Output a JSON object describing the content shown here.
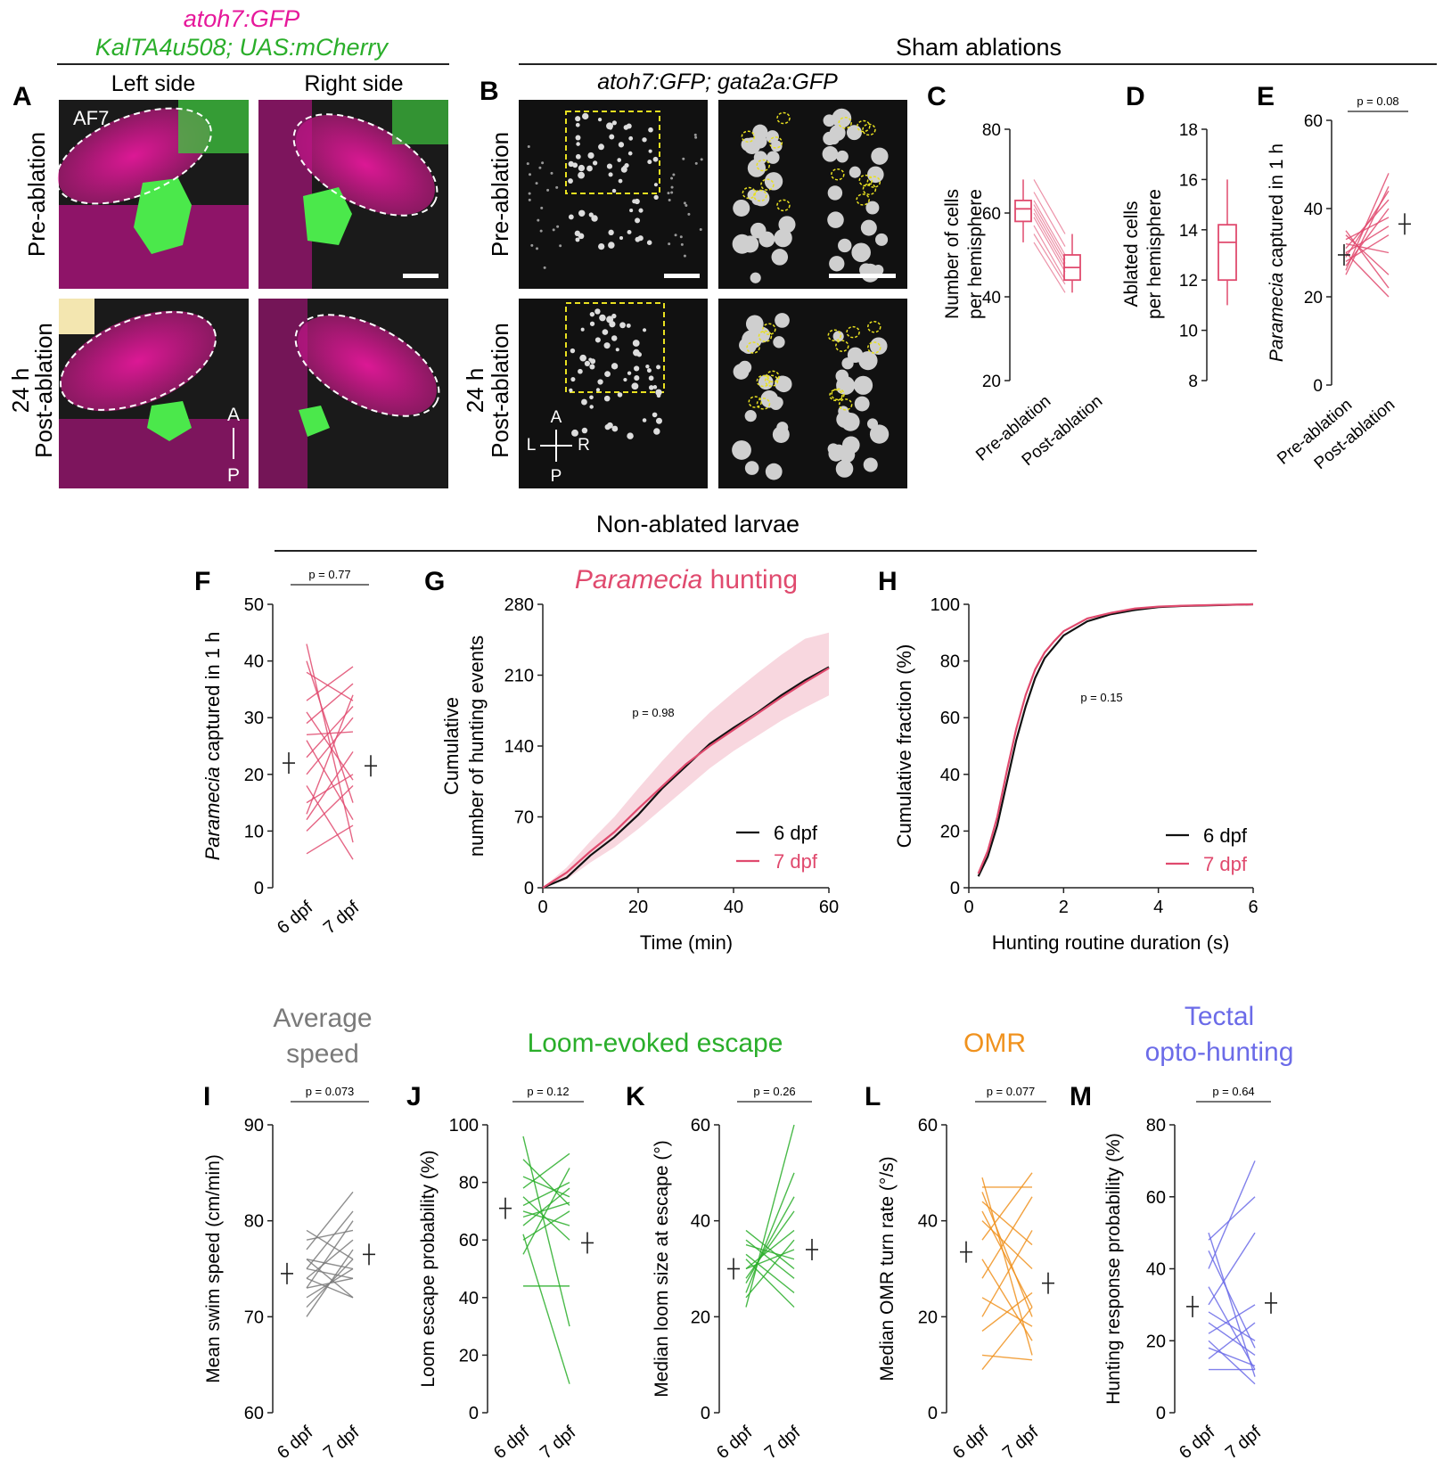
{
  "header_a": {
    "line1": "atoh7:GFP",
    "line2": "KalTA4u508; UAS:mCherry"
  },
  "header_sham": "Sham ablations",
  "header_b": "atoh7:GFP; gata2a:GFP",
  "header_nonablated": "Non-ablated larvae",
  "panel_letters": [
    "A",
    "B",
    "C",
    "D",
    "E",
    "F",
    "G",
    "H",
    "I",
    "J",
    "K",
    "L",
    "M"
  ],
  "panel_a": {
    "left_side": "Left side",
    "right_side": "Right side",
    "pre": "Pre-ablation",
    "post_line1": "24 h",
    "post_line2": "Post-ablation",
    "af7": "AF7",
    "axis_a": "A",
    "axis_p": "P"
  },
  "panel_b": {
    "pre": "Pre-ablation",
    "post_line1": "24 h",
    "post_line2": "Post-ablation",
    "axis_a": "A",
    "axis_p": "P",
    "axis_l": "L",
    "axis_r": "R"
  },
  "colors": {
    "magenta": "#E6189B",
    "green": "#2AAE2A",
    "pink": "#E04A6E",
    "gray": "#7a7a7a",
    "orange": "#F0921E",
    "blue": "#6B6BE8",
    "yellow": "#E8E020"
  },
  "section_titles": {
    "I": "Average speed",
    "J": "Loom-evoked escape",
    "L": "OMR",
    "M": "Tectal opto-hunting"
  },
  "chart_data": [
    {
      "panel": "C",
      "type": "box+paired",
      "ylabel": "Number of cells per hemisphere",
      "ylim": [
        20,
        80
      ],
      "yticks": [
        20,
        40,
        60,
        80
      ],
      "categories": [
        "Pre-ablation",
        "Post-ablation"
      ],
      "box": [
        {
          "q1": 58,
          "median": 61,
          "q3": 63,
          "min": 53,
          "max": 68
        },
        {
          "q1": 44,
          "median": 47,
          "q3": 50,
          "min": 41,
          "max": 55
        }
      ],
      "pairs": [
        [
          68,
          55
        ],
        [
          65,
          52
        ],
        [
          63,
          50
        ],
        [
          62,
          49
        ],
        [
          61,
          48
        ],
        [
          60,
          47
        ],
        [
          59,
          46
        ],
        [
          57,
          44
        ],
        [
          55,
          43
        ],
        [
          53,
          41
        ]
      ]
    },
    {
      "panel": "D",
      "type": "box",
      "ylabel": "Ablated cells per hemisphere",
      "ylim": [
        8,
        18
      ],
      "yticks": [
        8,
        10,
        12,
        14,
        16,
        18
      ],
      "box": {
        "q1": 12,
        "median": 13.5,
        "q3": 14.2,
        "min": 11,
        "max": 16
      }
    },
    {
      "panel": "E",
      "type": "paired",
      "ylabel": "Paramecia captured in 1 h",
      "p": "p = 0.08",
      "ylim": [
        0,
        60
      ],
      "yticks": [
        0,
        20,
        40,
        60
      ],
      "categories": [
        "Pre-ablation",
        "Post-ablation"
      ],
      "mean_pre": 29.5,
      "mean_post": 36.5,
      "pairs": [
        [
          26,
          48
        ],
        [
          25,
          45
        ],
        [
          29,
          44
        ],
        [
          31,
          42
        ],
        [
          27,
          40
        ],
        [
          33,
          38
        ],
        [
          30,
          36
        ],
        [
          28,
          34
        ],
        [
          32,
          30
        ],
        [
          34,
          25
        ],
        [
          35,
          22
        ],
        [
          30,
          20
        ]
      ]
    },
    {
      "panel": "F",
      "type": "paired",
      "ylabel": "Paramecia captured in 1 h",
      "p": "p = 0.77",
      "ylim": [
        0,
        50
      ],
      "yticks": [
        0,
        10,
        20,
        30,
        40,
        50
      ],
      "categories": [
        "6 dpf",
        "7 dpf"
      ],
      "mean_pre": 22,
      "mean_post": 21.5,
      "pairs": [
        [
          43,
          8
        ],
        [
          40,
          15
        ],
        [
          38,
          33
        ],
        [
          33,
          39
        ],
        [
          31,
          19
        ],
        [
          29,
          36
        ],
        [
          27,
          27.5
        ],
        [
          26,
          12
        ],
        [
          23,
          32
        ],
        [
          20,
          30
        ],
        [
          18,
          5
        ],
        [
          15,
          20
        ],
        [
          13,
          34
        ],
        [
          12,
          24
        ],
        [
          10,
          18
        ],
        [
          6,
          11
        ]
      ]
    },
    {
      "panel": "G",
      "type": "line",
      "title": "Paramecia hunting",
      "p": "p = 0.98",
      "xlabel": "Time (min)",
      "ylabel": "Cumulative number of hunting events",
      "xlim": [
        0,
        60
      ],
      "ylim": [
        0,
        280
      ],
      "xticks": [
        0,
        20,
        40,
        60
      ],
      "yticks": [
        0,
        70,
        140,
        210,
        280
      ],
      "x": [
        0,
        5,
        10,
        15,
        20,
        25,
        30,
        35,
        40,
        45,
        50,
        55,
        60
      ],
      "series": [
        {
          "name": "6 dpf",
          "values": [
            0,
            10,
            32,
            50,
            72,
            98,
            120,
            142,
            158,
            173,
            190,
            205,
            218
          ]
        },
        {
          "name": "7 dpf",
          "values": [
            0,
            15,
            36,
            55,
            78,
            100,
            122,
            140,
            156,
            172,
            188,
            203,
            217
          ]
        }
      ],
      "band": {
        "lower": [
          0,
          8,
          25,
          40,
          58,
          78,
          98,
          118,
          135,
          150,
          165,
          178,
          190
        ],
        "upper": [
          0,
          20,
          46,
          70,
          98,
          125,
          150,
          173,
          193,
          212,
          230,
          246,
          252
        ]
      }
    },
    {
      "panel": "H",
      "type": "line",
      "p": "p = 0.15",
      "xlabel": "Hunting routine duration (s)",
      "ylabel": "Cumulative fraction (%)",
      "xlim": [
        0,
        6
      ],
      "ylim": [
        0,
        100
      ],
      "xticks": [
        0,
        2,
        4,
        6
      ],
      "yticks": [
        0,
        20,
        40,
        60,
        80,
        100
      ],
      "x": [
        0.2,
        0.4,
        0.6,
        0.8,
        1.0,
        1.2,
        1.4,
        1.6,
        1.8,
        2.0,
        2.5,
        3.0,
        3.5,
        4.0,
        4.5,
        5.0,
        6.0
      ],
      "series": [
        {
          "name": "6 dpf",
          "values": [
            4,
            11,
            22,
            37,
            52,
            64,
            74,
            81,
            85,
            89,
            94,
            96.5,
            98,
            99,
            99.4,
            99.6,
            100
          ]
        },
        {
          "name": "7 dpf",
          "values": [
            5,
            13,
            25,
            41,
            56,
            68,
            77,
            83,
            87,
            90.5,
            95,
            97,
            98.5,
            99.2,
            99.5,
            99.7,
            100
          ]
        }
      ]
    },
    {
      "panel": "I",
      "type": "paired",
      "ylabel": "Mean swim speed (cm/min)",
      "p": "p = 0.073",
      "ylim": [
        60,
        90
      ],
      "yticks": [
        60,
        70,
        80,
        90
      ],
      "categories": [
        "6 dpf",
        "7 dpf"
      ],
      "mean_pre": 74.5,
      "mean_post": 76.5,
      "pairs": [
        [
          77,
          83
        ],
        [
          75,
          81
        ],
        [
          79,
          76
        ],
        [
          74,
          78
        ],
        [
          72,
          75
        ],
        [
          73,
          74
        ],
        [
          70,
          77
        ],
        [
          76,
          72
        ],
        [
          78,
          79
        ],
        [
          71,
          76
        ],
        [
          75,
          74
        ],
        [
          73,
          80
        ],
        [
          74,
          72
        ],
        [
          76,
          75
        ]
      ]
    },
    {
      "panel": "J",
      "type": "paired",
      "ylabel": "Loom escape probability (%)",
      "p": "p = 0.12",
      "ylim": [
        0,
        100
      ],
      "yticks": [
        0,
        20,
        40,
        60,
        80,
        100
      ],
      "categories": [
        "6 dpf",
        "7 dpf"
      ],
      "mean_pre": 71,
      "mean_post": 59,
      "pairs": [
        [
          96,
          30
        ],
        [
          88,
          72
        ],
        [
          82,
          75
        ],
        [
          78,
          90
        ],
        [
          75,
          60
        ],
        [
          72,
          80
        ],
        [
          70,
          65
        ],
        [
          68,
          73
        ],
        [
          65,
          78
        ],
        [
          62,
          10
        ],
        [
          60,
          70
        ],
        [
          55,
          85
        ],
        [
          44,
          44
        ]
      ]
    },
    {
      "panel": "K",
      "type": "paired",
      "ylabel": "Median loom size at escape (°)",
      "p": "p = 0.26",
      "ylim": [
        0,
        60
      ],
      "yticks": [
        0,
        20,
        40,
        60
      ],
      "categories": [
        "6 dpf",
        "7 dpf"
      ],
      "mean_pre": 30,
      "mean_post": 34,
      "pairs": [
        [
          22,
          60
        ],
        [
          25,
          50
        ],
        [
          27,
          45
        ],
        [
          30,
          38
        ],
        [
          32,
          22
        ],
        [
          35,
          32
        ],
        [
          38,
          30
        ],
        [
          28,
          42
        ],
        [
          33,
          25
        ],
        [
          24,
          36
        ],
        [
          36,
          28
        ],
        [
          30,
          34
        ]
      ]
    },
    {
      "panel": "L",
      "type": "paired",
      "ylabel": "Median OMR turn rate (°/s)",
      "p": "p = 0.077",
      "ylim": [
        0,
        60
      ],
      "yticks": [
        0,
        20,
        40,
        60
      ],
      "categories": [
        "6 dpf",
        "7 dpf"
      ],
      "mean_pre": 33.5,
      "mean_post": 27,
      "pairs": [
        [
          49,
          12
        ],
        [
          47,
          47
        ],
        [
          46,
          20
        ],
        [
          44,
          35
        ],
        [
          42,
          22
        ],
        [
          40,
          30
        ],
        [
          36,
          50
        ],
        [
          32,
          15
        ],
        [
          28,
          45
        ],
        [
          24,
          18
        ],
        [
          20,
          38
        ],
        [
          17,
          25
        ],
        [
          12,
          11
        ],
        [
          9,
          22
        ]
      ]
    },
    {
      "panel": "M",
      "type": "paired",
      "ylabel": "Hunting response probability (%)",
      "p": "p = 0.64",
      "ylim": [
        0,
        80
      ],
      "yticks": [
        0,
        20,
        40,
        60,
        80
      ],
      "categories": [
        "6 dpf",
        "7 dpf"
      ],
      "mean_pre": 29.5,
      "mean_post": 30.5,
      "pairs": [
        [
          50,
          10
        ],
        [
          48,
          60
        ],
        [
          45,
          18
        ],
        [
          40,
          70
        ],
        [
          35,
          12
        ],
        [
          30,
          50
        ],
        [
          28,
          20
        ],
        [
          25,
          16
        ],
        [
          22,
          30
        ],
        [
          20,
          8
        ],
        [
          18,
          13
        ],
        [
          15,
          25
        ],
        [
          12,
          12
        ]
      ]
    }
  ],
  "legend": {
    "six": "6 dpf",
    "seven": "7 dpf"
  }
}
